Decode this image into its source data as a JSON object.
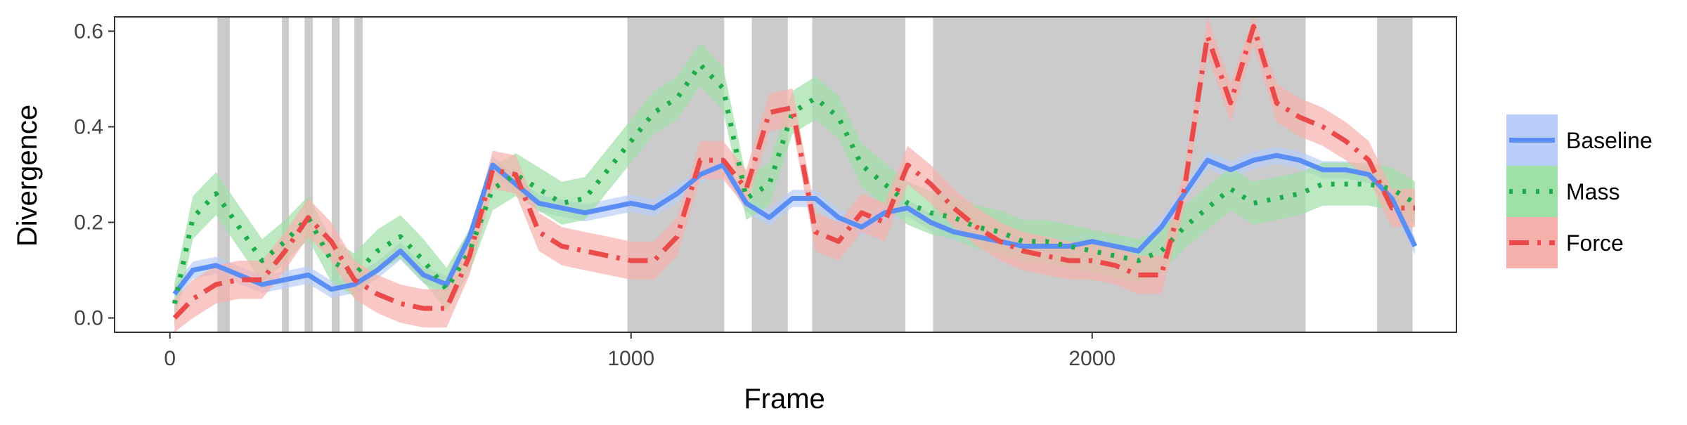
{
  "chart_data": {
    "type": "line",
    "xlabel": "Frame",
    "ylabel": "Divergence",
    "xlim": [
      -120,
      2790
    ],
    "ylim": [
      -0.03,
      0.63
    ],
    "x_ticks": [
      0,
      1000,
      2000
    ],
    "x_tick_labels": [
      "0",
      "1000",
      "2000"
    ],
    "y_ticks": [
      0.0,
      0.2,
      0.4,
      0.6
    ],
    "y_tick_labels": [
      "0.0",
      "0.2",
      "0.4",
      "0.6"
    ],
    "grid": false,
    "legend_position": "right",
    "shaded_regions": [
      [
        103,
        130
      ],
      [
        243,
        258
      ],
      [
        292,
        310
      ],
      [
        351,
        368
      ],
      [
        400,
        418
      ],
      [
        992,
        1202
      ],
      [
        1262,
        1340
      ],
      [
        1393,
        1595
      ],
      [
        1655,
        2463
      ],
      [
        2618,
        2695
      ]
    ],
    "shaded_color": "#cbcbcb",
    "series": [
      {
        "name": "Baseline",
        "color": "#5b8ef5",
        "band_color": "#b8cdf7",
        "line_style": "solid",
        "x": [
          10,
          50,
          100,
          150,
          200,
          250,
          300,
          350,
          400,
          450,
          500,
          550,
          600,
          650,
          700,
          750,
          800,
          850,
          900,
          950,
          1000,
          1050,
          1100,
          1150,
          1200,
          1250,
          1300,
          1350,
          1400,
          1450,
          1500,
          1550,
          1600,
          1650,
          1700,
          1750,
          1800,
          1850,
          1900,
          1950,
          2000,
          2050,
          2100,
          2150,
          2200,
          2250,
          2300,
          2350,
          2400,
          2450,
          2500,
          2550,
          2600,
          2650,
          2700
        ],
        "y": [
          0.05,
          0.1,
          0.11,
          0.09,
          0.07,
          0.08,
          0.09,
          0.06,
          0.07,
          0.1,
          0.14,
          0.09,
          0.07,
          0.17,
          0.32,
          0.28,
          0.24,
          0.23,
          0.22,
          0.23,
          0.24,
          0.23,
          0.26,
          0.3,
          0.32,
          0.24,
          0.21,
          0.25,
          0.25,
          0.21,
          0.19,
          0.22,
          0.23,
          0.2,
          0.18,
          0.17,
          0.16,
          0.15,
          0.15,
          0.15,
          0.16,
          0.15,
          0.14,
          0.19,
          0.26,
          0.33,
          0.31,
          0.33,
          0.34,
          0.33,
          0.31,
          0.31,
          0.3,
          0.25,
          0.15
        ],
        "band": 0.018
      },
      {
        "name": "Mass",
        "color": "#1fad4b",
        "band_color": "#9fe0a6",
        "line_style": "dotted",
        "x": [
          10,
          50,
          100,
          150,
          200,
          250,
          300,
          350,
          400,
          450,
          500,
          550,
          600,
          650,
          700,
          750,
          800,
          850,
          900,
          950,
          1000,
          1050,
          1100,
          1150,
          1200,
          1250,
          1300,
          1350,
          1400,
          1450,
          1500,
          1550,
          1600,
          1650,
          1700,
          1750,
          1800,
          1850,
          1900,
          1950,
          2000,
          2050,
          2100,
          2150,
          2200,
          2250,
          2300,
          2350,
          2400,
          2450,
          2500,
          2550,
          2600,
          2650,
          2700
        ],
        "y": [
          0.03,
          0.21,
          0.26,
          0.19,
          0.12,
          0.16,
          0.21,
          0.12,
          0.09,
          0.14,
          0.17,
          0.12,
          0.06,
          0.14,
          0.27,
          0.3,
          0.27,
          0.24,
          0.25,
          0.31,
          0.37,
          0.43,
          0.46,
          0.53,
          0.48,
          0.25,
          0.28,
          0.43,
          0.46,
          0.42,
          0.32,
          0.28,
          0.24,
          0.22,
          0.21,
          0.19,
          0.18,
          0.16,
          0.16,
          0.15,
          0.14,
          0.13,
          0.12,
          0.14,
          0.19,
          0.23,
          0.27,
          0.24,
          0.25,
          0.26,
          0.28,
          0.28,
          0.28,
          0.27,
          0.24
        ],
        "band": 0.045
      },
      {
        "name": "Force",
        "color": "#ea4a4a",
        "band_color": "#f6b1ad",
        "line_style": "dashdot",
        "x": [
          10,
          50,
          100,
          150,
          200,
          250,
          300,
          350,
          400,
          450,
          500,
          550,
          600,
          650,
          700,
          750,
          800,
          850,
          900,
          950,
          1000,
          1050,
          1100,
          1150,
          1200,
          1250,
          1300,
          1350,
          1400,
          1450,
          1500,
          1550,
          1600,
          1650,
          1700,
          1750,
          1800,
          1850,
          1900,
          1950,
          2000,
          2050,
          2100,
          2150,
          2200,
          2250,
          2300,
          2350,
          2400,
          2450,
          2500,
          2550,
          2600,
          2650,
          2700
        ],
        "y": [
          0.0,
          0.04,
          0.07,
          0.08,
          0.08,
          0.14,
          0.21,
          0.16,
          0.08,
          0.05,
          0.03,
          0.02,
          0.02,
          0.13,
          0.31,
          0.3,
          0.18,
          0.15,
          0.14,
          0.13,
          0.12,
          0.12,
          0.17,
          0.33,
          0.33,
          0.27,
          0.43,
          0.44,
          0.18,
          0.16,
          0.22,
          0.2,
          0.32,
          0.28,
          0.23,
          0.19,
          0.16,
          0.14,
          0.13,
          0.12,
          0.12,
          0.11,
          0.09,
          0.09,
          0.27,
          0.59,
          0.45,
          0.61,
          0.45,
          0.42,
          0.4,
          0.37,
          0.33,
          0.23,
          0.23
        ],
        "band": 0.04
      }
    ]
  }
}
